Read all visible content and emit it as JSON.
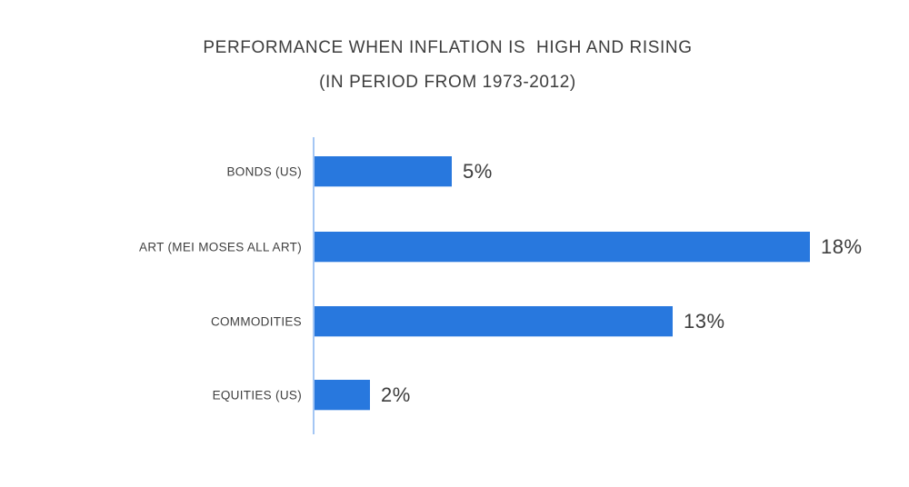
{
  "chart_data": {
    "type": "bar",
    "orientation": "horizontal",
    "title": "PERFORMANCE WHEN INFLATION IS  HIGH AND RISING",
    "subtitle": "(IN PERIOD FROM 1973-2012)",
    "categories": [
      "BONDS (US)",
      "ART (MEI MOSES ALL ART)",
      "COMMODITIES",
      "EQUITIES (US)"
    ],
    "values": [
      5,
      18,
      13,
      2
    ],
    "value_labels": [
      "5%",
      "18%",
      "13%",
      "2%"
    ],
    "xlim": [
      0,
      18
    ],
    "grid": false,
    "legend": false,
    "bar_color": "#2878de",
    "axis_color": "#a4c6f4",
    "text_color": "#3d3d3d"
  }
}
